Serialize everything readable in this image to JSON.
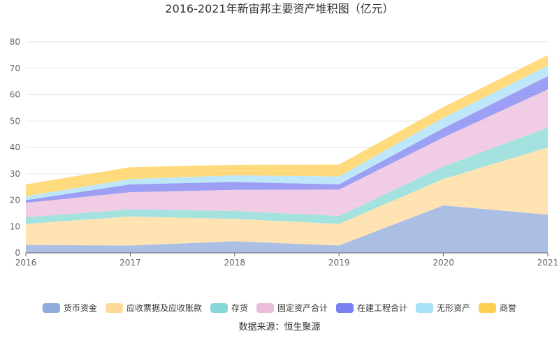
{
  "chart_data": {
    "type": "area",
    "stacked": true,
    "title": "2016-2021年新宙邦主要资产堆积图（亿元）",
    "source": "数据来源：恒生聚源",
    "x": [
      "2016",
      "2017",
      "2018",
      "2019",
      "2020",
      "2021"
    ],
    "ylim": [
      0,
      80
    ],
    "yticks": [
      0,
      10,
      20,
      30,
      40,
      50,
      60,
      70,
      80
    ],
    "grid": true,
    "legend_position": "bottom",
    "series": [
      {
        "name": "货币资金",
        "color": "#8faadc",
        "values": [
          3.0,
          2.8,
          4.4,
          2.8,
          18.0,
          14.5
        ]
      },
      {
        "name": "应收票据及应收账款",
        "color": "#ffd99a",
        "values": [
          8.0,
          11.0,
          8.5,
          8.2,
          10.0,
          25.5
        ]
      },
      {
        "name": "存货",
        "color": "#86d8d6",
        "values": [
          2.5,
          2.7,
          3.0,
          3.0,
          4.8,
          7.5
        ]
      },
      {
        "name": "固定资产合计",
        "color": "#ecbcdc",
        "values": [
          5.5,
          6.5,
          8.0,
          10.0,
          11.0,
          14.5
        ]
      },
      {
        "name": "在建工程合计",
        "color": "#7b7ff0",
        "values": [
          1.0,
          3.0,
          3.0,
          2.0,
          3.5,
          5.0
        ]
      },
      {
        "name": "无形资产",
        "color": "#a8e0f8",
        "values": [
          1.5,
          2.0,
          2.5,
          3.0,
          4.0,
          4.0
        ]
      },
      {
        "name": "商誉",
        "color": "#ffcf52",
        "values": [
          4.5,
          4.5,
          4.0,
          4.5,
          4.0,
          4.0
        ]
      }
    ]
  }
}
